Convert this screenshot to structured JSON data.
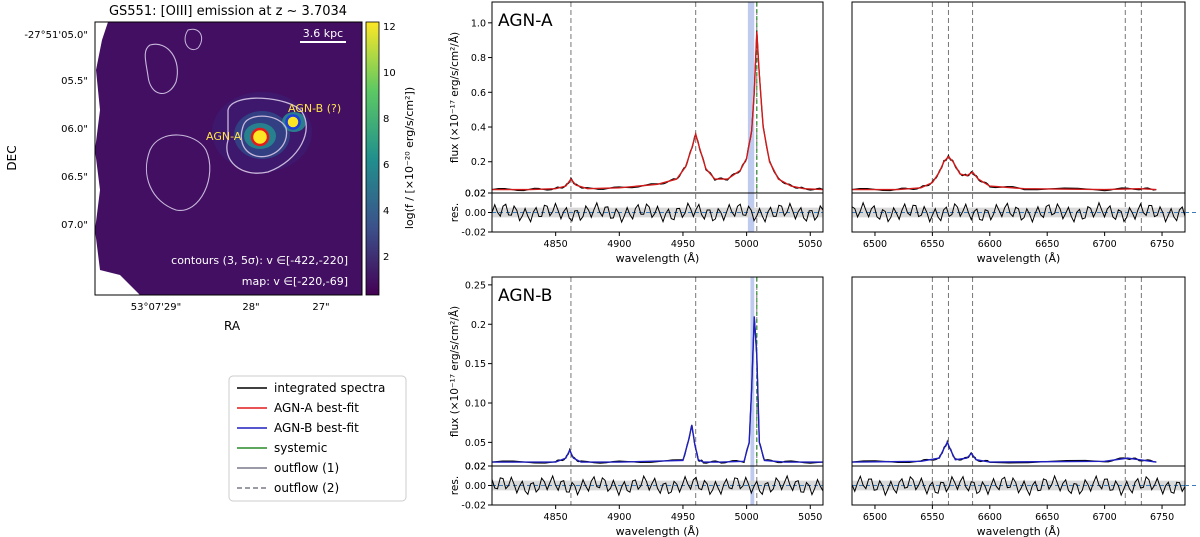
{
  "map": {
    "title": "GS551: [OIII] emission at z ~ 3.7034",
    "scalebar": "3.6 kpc",
    "xlabel": "RA",
    "ylabel": "DEC",
    "yticks": [
      "-27°51'05.0\"",
      "05.5\"",
      "06.0\"",
      "06.5\"",
      "07.0\""
    ],
    "xticks": [
      "53°07'29\"",
      "28\"",
      "27\""
    ],
    "agn_a_label": "AGN-A",
    "agn_b_label": "AGN-B (?)",
    "contours_note": "contours (3, 5σ): v ∈[-422,-220]",
    "map_note": "map: v ∈[-220,-69]",
    "colorbar_label": "log(f / [×10⁻²⁰ erg/s/cm²])",
    "colorbar_ticks": [
      "2",
      "4",
      "6",
      "8",
      "10",
      "12"
    ],
    "colors": {
      "agn_a": "#e31a1c",
      "agn_b": "#1f3fd8",
      "label": "#ffe34d",
      "contour": "#c8b8dc"
    }
  },
  "legend": {
    "items": [
      {
        "label": "integrated spectra",
        "color": "#000000",
        "dash": false
      },
      {
        "label": "AGN-A best-fit",
        "color": "#e31a1c",
        "dash": false
      },
      {
        "label": "AGN-B best-fit",
        "color": "#1f1fbf",
        "dash": false
      },
      {
        "label": "systemic",
        "color": "#2a8a2a",
        "dash": false
      },
      {
        "label": "outflow (1)",
        "color": "#7a7a8a",
        "dash": false
      },
      {
        "label": "outflow (2)",
        "color": "#7a7a8a",
        "dash": true
      }
    ]
  },
  "chart_data": [
    {
      "type": "line",
      "title": "AGN-A",
      "panel": "AGN-A [OIII]/Hβ region",
      "xlabel": "wavelength (Å)",
      "ylabel": "flux (×10⁻¹⁷ erg/s/cm²/Å)",
      "residual_label": "res.",
      "xlim": [
        4800,
        5060
      ],
      "ylim": [
        0.02,
        1.12
      ],
      "yticks": [
        0.02,
        0.2,
        0.4,
        0.6,
        0.8,
        1.0
      ],
      "xticks": [
        4850,
        4900,
        4950,
        5000,
        5050
      ],
      "res_ylim": [
        -0.02,
        0.02
      ],
      "res_yticks": [
        -0.02,
        0.0,
        0.02
      ],
      "vlines": [
        4862,
        4960,
        5008
      ],
      "systemic_line": 5008,
      "shade": [
        5001,
        5006
      ],
      "series": [
        {
          "x": [
            4800,
            4830,
            4850,
            4858,
            4862,
            4866,
            4875,
            4900,
            4930,
            4945,
            4952,
            4957,
            4960,
            4963,
            4968,
            4975,
            4985,
            4995,
            5000,
            5004,
            5006,
            5008,
            5010,
            5013,
            5018,
            5025,
            5035,
            5045,
            5060
          ],
          "y": [
            0.04,
            0.04,
            0.045,
            0.06,
            0.1,
            0.065,
            0.045,
            0.05,
            0.07,
            0.1,
            0.17,
            0.28,
            0.36,
            0.28,
            0.16,
            0.1,
            0.1,
            0.15,
            0.22,
            0.38,
            0.6,
            0.95,
            0.7,
            0.4,
            0.2,
            0.1,
            0.06,
            0.045,
            0.04
          ]
        }
      ]
    },
    {
      "type": "line",
      "panel": "AGN-A Hα region",
      "xlabel": "wavelength (Å)",
      "xlim": [
        6480,
        6770
      ],
      "ylim": [
        0.02,
        1.12
      ],
      "xticks": [
        6500,
        6550,
        6600,
        6650,
        6700,
        6750
      ],
      "vlines": [
        6550,
        6564,
        6585,
        6718,
        6732
      ],
      "series": [
        {
          "x": [
            6480,
            6520,
            6540,
            6550,
            6556,
            6560,
            6564,
            6568,
            6574,
            6580,
            6585,
            6590,
            6600,
            6630,
            6700,
            6730,
            6745
          ],
          "y": [
            0.04,
            0.04,
            0.05,
            0.08,
            0.14,
            0.2,
            0.23,
            0.2,
            0.13,
            0.12,
            0.14,
            0.1,
            0.06,
            0.045,
            0.04,
            0.045,
            0.04
          ]
        }
      ]
    },
    {
      "type": "line",
      "title": "AGN-B",
      "panel": "AGN-B [OIII]/Hβ region",
      "xlabel": "wavelength (Å)",
      "ylabel": "flux (×10⁻¹⁷ erg/s/cm²/Å)",
      "residual_label": "res.",
      "xlim": [
        4800,
        5060
      ],
      "ylim": [
        0.02,
        0.26
      ],
      "yticks": [
        0.02,
        0.05,
        0.1,
        0.15,
        0.2,
        0.25
      ],
      "xticks": [
        4850,
        4900,
        4950,
        5000,
        5050
      ],
      "res_ylim": [
        -0.02,
        0.02
      ],
      "res_yticks": [
        -0.02,
        0.0,
        0.02
      ],
      "vlines": [
        4862,
        4960,
        5008
      ],
      "systemic_line": 5008,
      "shade": [
        5003,
        5006
      ],
      "series": [
        {
          "x": [
            4800,
            4850,
            4858,
            4861,
            4864,
            4870,
            4900,
            4950,
            4954,
            4957,
            4959,
            4962,
            4966,
            4980,
            4998,
            5002,
            5004,
            5006,
            5008,
            5010,
            5014,
            5030,
            5060
          ],
          "y": [
            0.025,
            0.025,
            0.03,
            0.04,
            0.03,
            0.025,
            0.025,
            0.027,
            0.05,
            0.072,
            0.05,
            0.028,
            0.025,
            0.025,
            0.026,
            0.05,
            0.12,
            0.21,
            0.16,
            0.05,
            0.027,
            0.025,
            0.025
          ]
        }
      ]
    },
    {
      "type": "line",
      "panel": "AGN-B Hα region",
      "xlabel": "wavelength (Å)",
      "xlim": [
        6480,
        6770
      ],
      "ylim": [
        0.02,
        0.26
      ],
      "xticks": [
        6500,
        6550,
        6600,
        6650,
        6700,
        6750
      ],
      "vlines": [
        6550,
        6564,
        6585,
        6718,
        6732
      ],
      "series": [
        {
          "x": [
            6480,
            6540,
            6556,
            6560,
            6563,
            6566,
            6570,
            6580,
            6584,
            6588,
            6600,
            6700,
            6720,
            6730,
            6745
          ],
          "y": [
            0.025,
            0.026,
            0.03,
            0.042,
            0.05,
            0.04,
            0.028,
            0.03,
            0.036,
            0.028,
            0.025,
            0.026,
            0.03,
            0.028,
            0.025
          ]
        }
      ]
    }
  ]
}
